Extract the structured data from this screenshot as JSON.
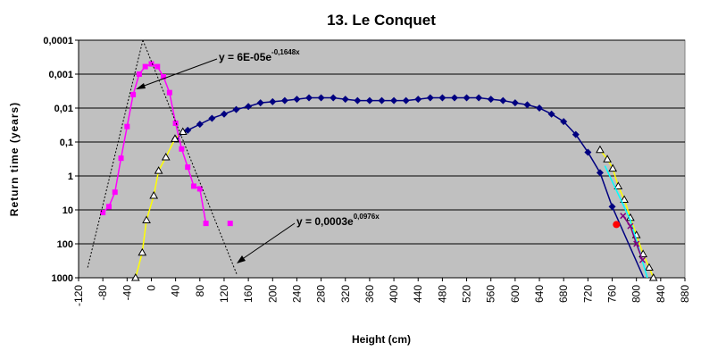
{
  "chart_data": {
    "type": "line",
    "title": "13. Le Conquet",
    "x_label": "Height (cm)",
    "y_label": "Return time (years)",
    "xlim": [
      -120,
      880
    ],
    "xticks": [
      -120,
      -80,
      -40,
      0,
      40,
      80,
      120,
      160,
      200,
      240,
      280,
      320,
      360,
      400,
      440,
      480,
      520,
      560,
      600,
      640,
      680,
      720,
      760,
      800,
      840,
      880
    ],
    "ylim": [
      0.0001,
      1000
    ],
    "y_log_scale": true,
    "y_inverted": true,
    "yticks": [
      {
        "value": 0.0001,
        "label": "0,0001"
      },
      {
        "value": 0.001,
        "label": "0,001"
      },
      {
        "value": 0.01,
        "label": "0,01"
      },
      {
        "value": 0.1,
        "label": "0,1"
      },
      1,
      10,
      100,
      1000
    ],
    "grid": true,
    "plot_background": "#c0c0c0",
    "series": [
      {
        "color": "#000080",
        "marker": "diamond",
        "x": [
          40,
          60,
          80,
          100,
          120,
          140,
          160,
          180,
          200,
          220,
          240,
          260,
          280,
          300,
          320,
          340,
          360,
          380,
          400,
          420,
          440,
          460,
          480,
          500,
          520,
          540,
          560,
          580,
          600,
          620,
          640,
          660,
          680,
          700,
          720,
          740,
          760
        ],
        "values": [
          0.08,
          0.045,
          0.03,
          0.02,
          0.015,
          0.011,
          0.009,
          0.007,
          0.0065,
          0.006,
          0.0055,
          0.005,
          0.005,
          0.005,
          0.0055,
          0.006,
          0.006,
          0.006,
          0.006,
          0.006,
          0.0055,
          0.005,
          0.005,
          0.005,
          0.005,
          0.005,
          0.0055,
          0.006,
          0.007,
          0.008,
          0.01,
          0.015,
          0.025,
          0.06,
          0.2,
          0.8,
          8
        ]
      },
      {
        "color": "#000080",
        "marker": "none",
        "x": [
          760,
          812
        ],
        "values": [
          8,
          1000
        ]
      },
      {
        "color": "#ffff00",
        "marker": "triangle",
        "x": [
          -26,
          -15,
          -8,
          4,
          12,
          24,
          39,
          52,
          null,
          740,
          752,
          761,
          770,
          780,
          790,
          800,
          811,
          821,
          828
        ],
        "values": [
          1000,
          180,
          20,
          3.8,
          0.7,
          0.28,
          0.08,
          0.05,
          null,
          0.17,
          0.32,
          0.6,
          2,
          5,
          17,
          55,
          200,
          500,
          1000
        ]
      },
      {
        "color": "#00ffff",
        "marker": "none",
        "x": [
          748,
          790,
          818
        ],
        "values": [
          0.5,
          20,
          1000
        ]
      },
      {
        "color": "#ff00ff",
        "marker": "square",
        "x": [
          -80,
          -70,
          -60,
          -50,
          -40,
          -30,
          -20,
          -10,
          0,
          10,
          20,
          30,
          40,
          50,
          60,
          70,
          80,
          90,
          110,
          130
        ],
        "values": [
          12,
          8,
          3,
          0.3,
          0.035,
          0.004,
          0.001,
          0.0006,
          0.0005,
          0.0006,
          0.0012,
          0.0035,
          0.028,
          0.16,
          0.55,
          2,
          2.4,
          25,
          null,
          25
        ]
      },
      {
        "color": "#800080",
        "marker": "x",
        "x": [
          778,
          790,
          800,
          810
        ],
        "values": [
          15,
          30,
          100,
          300
        ]
      },
      {
        "color": "#ff0000",
        "marker": "circle",
        "x": [
          767
        ],
        "values": [
          27
        ]
      },
      {
        "color": "#000000",
        "marker": "none",
        "dash": "2,2",
        "x": [
          -105,
          -14
        ],
        "values": [
          500,
          0.0001
        ]
      },
      {
        "color": "#000000",
        "marker": "none",
        "dash": "2,2",
        "x": [
          -14,
          141
        ],
        "values": [
          0.0001,
          800
        ]
      }
    ],
    "annotations": [
      {
        "text": "y = 6E-05e",
        "exponent": "-0,1648x"
      },
      {
        "text": "y = 0,0003e",
        "exponent": "0,0976x"
      }
    ]
  }
}
